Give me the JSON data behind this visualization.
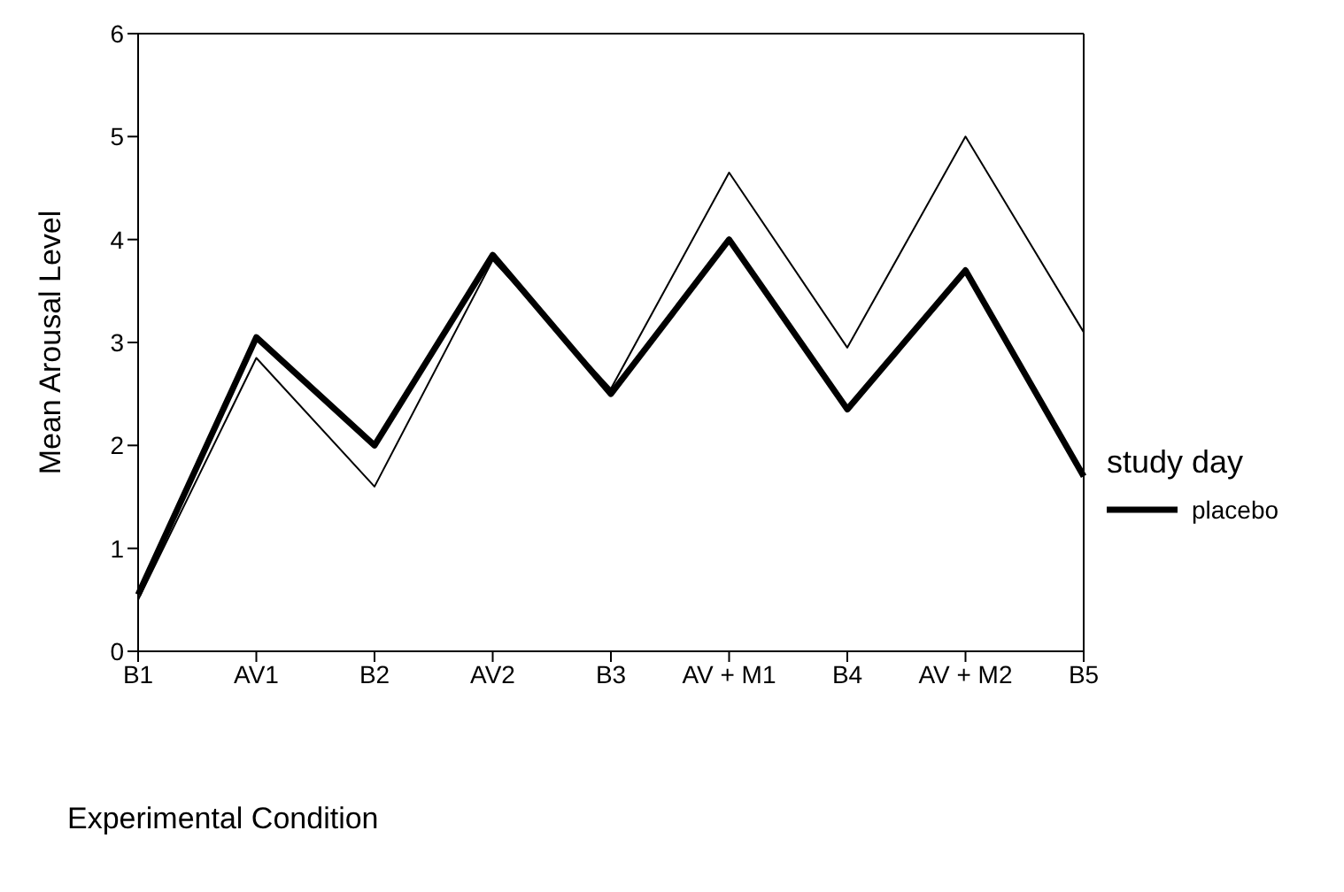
{
  "chart_data": {
    "type": "line",
    "xlabel": "Experimental Condition",
    "ylabel": "Mean Arousal Level",
    "legend_title": "study day",
    "categories": [
      "B1",
      "AV1",
      "B2",
      "AV2",
      "B3",
      "AV + M1",
      "B4",
      "AV + M2",
      "B5"
    ],
    "series": [
      {
        "color": "#000000",
        "values": [
          0.5,
          2.85,
          1.6,
          3.8,
          2.55,
          4.65,
          2.95,
          5.0,
          3.1
        ]
      },
      {
        "name": "placebo",
        "color": "#000000",
        "values": [
          0.55,
          3.05,
          2.0,
          3.85,
          2.5,
          4.0,
          2.35,
          3.7,
          1.7
        ]
      }
    ],
    "ylim": [
      0,
      6
    ],
    "yticks": [
      0,
      1,
      2,
      3,
      4,
      5,
      6
    ],
    "legend": "right",
    "marker": "none",
    "line_style": "solid",
    "grid": false
  }
}
